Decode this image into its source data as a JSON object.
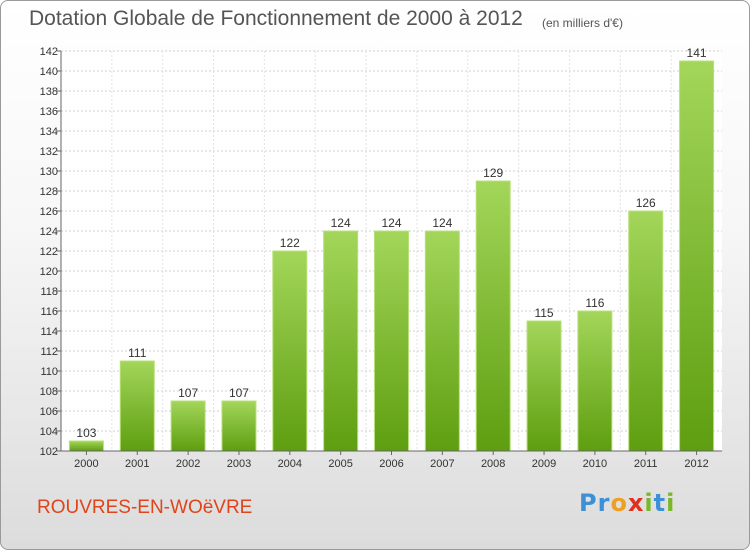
{
  "header": {
    "title": "Dotation Globale de Fonctionnement de 2000 à 2012",
    "subtitle": "(en milliers d'€)"
  },
  "footer": {
    "commune": "ROUVRES-EN-WOëVRE",
    "logo_letters": [
      "P",
      "r",
      "o",
      "x",
      "i",
      "t",
      "i"
    ]
  },
  "colors": {
    "bar_top": "#a3d65a",
    "bar_bottom": "#5e9e10",
    "commune_text": "#e0441a",
    "logo": [
      "#3d8fd6",
      "#3d8fd6",
      "#f0a020",
      "#e03020",
      "#7ab828",
      "#3d8fd6",
      "#7ab828"
    ]
  },
  "chart_data": {
    "type": "bar",
    "title": "Dotation Globale de Fonctionnement de 2000 à 2012",
    "subtitle": "(en milliers d'€)",
    "categories": [
      "2000",
      "2001",
      "2002",
      "2003",
      "2004",
      "2005",
      "2006",
      "2007",
      "2008",
      "2009",
      "2010",
      "2011",
      "2012"
    ],
    "values": [
      103,
      111,
      107,
      107,
      122,
      124,
      124,
      124,
      129,
      115,
      116,
      126,
      141
    ],
    "ylim": [
      102,
      142
    ],
    "ytick_step": 2,
    "grid": true,
    "legend": false
  }
}
